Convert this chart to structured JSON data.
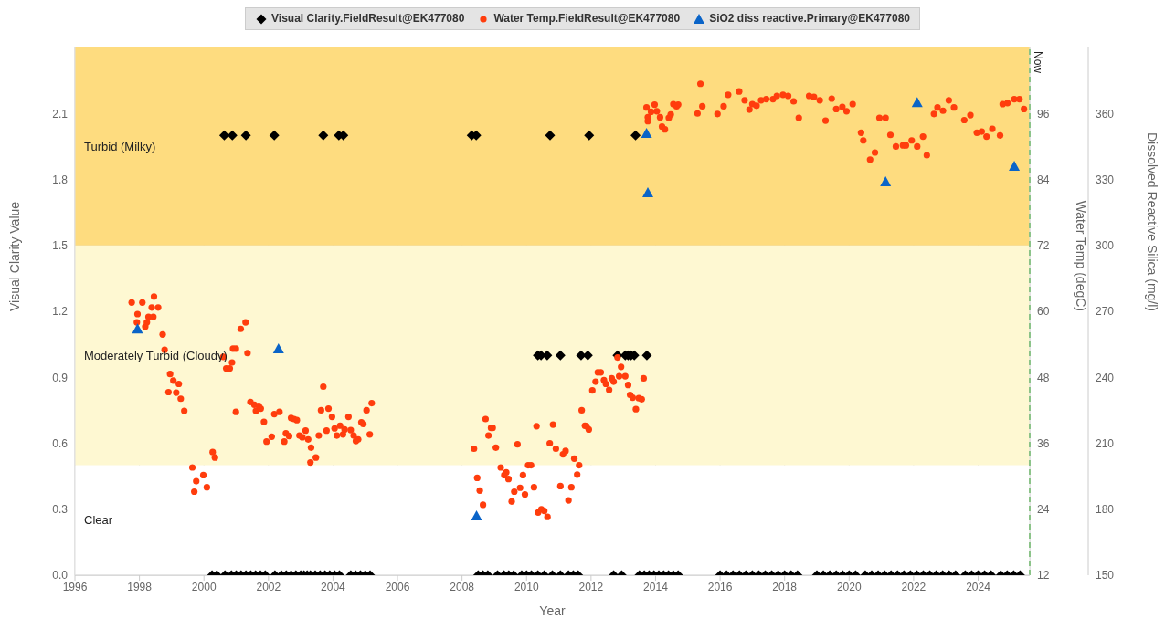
{
  "chart_data": {
    "type": "scatter",
    "xlabel": "Year",
    "ylabel": "Visual Clarity Value",
    "y2label": "Water Temp (degC)",
    "y3label": "Dissolved Reactive Silica (mg/l)",
    "xlim": [
      1996,
      2025.6
    ],
    "xticks": [
      1996,
      1998,
      2000,
      2002,
      2004,
      2006,
      2008,
      2010,
      2012,
      2014,
      2016,
      2018,
      2020,
      2022,
      2024
    ],
    "ylim": [
      0,
      2.4
    ],
    "yticks": [
      {
        "value": 0,
        "label": "0.0"
      },
      0.3,
      0.6,
      0.9,
      1.2,
      1.5,
      1.8,
      2.1
    ],
    "y2lim": [
      12,
      108
    ],
    "y2ticks": [
      12,
      24,
      36,
      48,
      60,
      72,
      84,
      96
    ],
    "y3lim": [
      150,
      390
    ],
    "y3ticks": [
      150,
      180,
      210,
      240,
      270,
      300,
      330,
      360
    ],
    "grid": true,
    "legend": "top",
    "bands": [
      {
        "axis": "y",
        "from": 0,
        "to": 0.5,
        "label": "Clear",
        "color": "#ffffff"
      },
      {
        "axis": "y",
        "from": 0.5,
        "to": 1.5,
        "label": "Moderately Turbid (Cloudy)",
        "color": "#fef8d2"
      },
      {
        "axis": "y",
        "from": 1.5,
        "to": 2.4,
        "label": "Turbid (Milky)",
        "color": "#fedc7f"
      }
    ],
    "ref_lines": [
      {
        "axis": "x",
        "value": 2025.6,
        "label": "Now",
        "color": "#3aaa35",
        "line_style": "dashed"
      }
    ],
    "series": [
      {
        "name": "Visual Clarity.FieldResult@EK477080",
        "color": "#000000",
        "marker": "diamond",
        "x": [
          2000.63,
          2000.88,
          2001.3,
          2002.18,
          2003.7,
          2004.18,
          2004.32,
          2008.3,
          2008.44,
          2010.73,
          2011.94,
          2013.38,
          2010.35,
          2010.45,
          2010.64,
          2011.05,
          2011.69,
          2011.9,
          2012.82,
          2013.06,
          2013.15,
          2013.24,
          2013.34,
          2013.73,
          2000.25,
          2000.4,
          2000.65,
          2000.85,
          2001.0,
          2001.15,
          2001.3,
          2001.45,
          2001.6,
          2001.75,
          2001.9,
          2002.2,
          2002.4,
          2002.55,
          2002.7,
          2002.85,
          2003.0,
          2003.1,
          2003.2,
          2003.3,
          2003.45,
          2003.6,
          2003.75,
          2003.9,
          2004.05,
          2004.2,
          2004.55,
          2004.7,
          2004.85,
          2005.0,
          2005.15,
          2008.5,
          2008.65,
          2008.8,
          2009.1,
          2009.3,
          2009.45,
          2009.6,
          2009.85,
          2010.0,
          2010.15,
          2010.35,
          2010.55,
          2010.8,
          2011.05,
          2011.3,
          2011.45,
          2011.6,
          2012.7,
          2012.95,
          2013.5,
          2013.65,
          2013.8,
          2013.95,
          2014.1,
          2014.25,
          2014.4,
          2014.55,
          2014.7,
          2016.0,
          2016.2,
          2016.4,
          2016.6,
          2016.8,
          2017.0,
          2017.2,
          2017.4,
          2017.6,
          2017.8,
          2018.0,
          2018.2,
          2018.4,
          2019.0,
          2019.2,
          2019.4,
          2019.6,
          2019.8,
          2020.0,
          2020.2,
          2020.5,
          2020.7,
          2020.9,
          2021.1,
          2021.3,
          2021.5,
          2021.7,
          2021.9,
          2022.1,
          2022.3,
          2022.5,
          2022.7,
          2022.9,
          2023.1,
          2023.3,
          2023.6,
          2023.8,
          2024.0,
          2024.2,
          2024.4,
          2024.7,
          2024.9,
          2025.1,
          2025.3
        ],
        "values": [
          2,
          2,
          2,
          2,
          2,
          2,
          2,
          2,
          2,
          2,
          2,
          2,
          1,
          1,
          1,
          1,
          1,
          1,
          1,
          1,
          1,
          1,
          1,
          1,
          0,
          0,
          0,
          0,
          0,
          0,
          0,
          0,
          0,
          0,
          0,
          0,
          0,
          0,
          0,
          0,
          0,
          0,
          0,
          0,
          0,
          0,
          0,
          0,
          0,
          0,
          0,
          0,
          0,
          0,
          0,
          0,
          0,
          0,
          0,
          0,
          0,
          0,
          0,
          0,
          0,
          0,
          0,
          0,
          0,
          0,
          0,
          0,
          0,
          0,
          0,
          0,
          0,
          0,
          0,
          0,
          0,
          0,
          0,
          0,
          0,
          0,
          0,
          0,
          0,
          0,
          0,
          0,
          0,
          0,
          0,
          0,
          0,
          0,
          0,
          0,
          0,
          0,
          0,
          0,
          0,
          0,
          0,
          0,
          0,
          0,
          0,
          0,
          0,
          0,
          0,
          0,
          0,
          0,
          0,
          0,
          0,
          0,
          0,
          0,
          0,
          0,
          0
        ]
      },
      {
        "name": "Water Temp.FieldResult@EK477080",
        "color": "#ff3d0d",
        "marker": "circle",
        "axis": "y2",
        "x": [
          1997.76,
          1997.92,
          1997.94,
          1998.09,
          1998.18,
          1998.23,
          1998.28,
          1998.38,
          1998.43,
          1998.45,
          1998.58,
          1998.72,
          1998.78,
          1998.9,
          1998.95,
          1999.05,
          1999.14,
          1999.22,
          1999.28,
          1999.39,
          1999.64,
          1999.7,
          1999.76,
          1999.98,
          2000.09,
          2000.27,
          2000.34,
          2000.6,
          2000.69,
          2000.8,
          2000.87,
          2000.9,
          2000.99,
          2000.99,
          2001.14,
          2001.29,
          2001.35,
          2001.44,
          2001.56,
          2001.61,
          2001.7,
          2001.76,
          2001.86,
          2001.94,
          2002.1,
          2002.18,
          2002.34,
          2002.49,
          2002.54,
          2002.64,
          2002.7,
          2002.79,
          2002.88,
          2002.96,
          2003.05,
          2003.15,
          2003.23,
          2003.3,
          2003.32,
          2003.47,
          2003.56,
          2003.63,
          2003.7,
          2003.8,
          2003.86,
          2003.97,
          2004.05,
          2004.12,
          2004.22,
          2004.31,
          2004.36,
          2004.48,
          2004.55,
          2004.64,
          2004.71,
          2004.78,
          2004.88,
          2004.94,
          2005.04,
          2005.14,
          2005.2,
          2008.37,
          2008.47,
          2008.55,
          2008.65,
          2008.73,
          2008.82,
          2008.9,
          2008.95,
          2009.05,
          2009.2,
          2009.31,
          2009.37,
          2009.44,
          2009.54,
          2009.62,
          2009.72,
          2009.8,
          2009.89,
          2009.95,
          2010.05,
          2010.14,
          2010.23,
          2010.31,
          2010.36,
          2010.46,
          2010.55,
          2010.65,
          2010.72,
          2010.82,
          2010.91,
          2011.05,
          2011.13,
          2011.21,
          2011.3,
          2011.39,
          2011.48,
          2011.57,
          2011.63,
          2011.71,
          2011.81,
          2011.86,
          2011.93,
          2012.04,
          2012.14,
          2012.21,
          2012.3,
          2012.4,
          2012.46,
          2012.56,
          2012.64,
          2012.7,
          2012.82,
          2012.87,
          2012.93,
          2013.06,
          2013.15,
          2013.21,
          2013.29,
          2013.39,
          2013.48,
          2013.57,
          2013.63,
          2013.72,
          2013.76,
          2013.76,
          2013.86,
          2013.97,
          2014.04,
          2014.14,
          2014.2,
          2014.29,
          2014.41,
          2014.47,
          2014.55,
          2014.65,
          2014.7,
          2015.3,
          2015.39,
          2015.45,
          2015.92,
          2016.11,
          2016.25,
          2016.59,
          2016.76,
          2016.91,
          2017.0,
          2017.13,
          2017.27,
          2017.43,
          2017.64,
          2017.76,
          2017.95,
          2018.11,
          2018.28,
          2018.44,
          2018.76,
          2018.91,
          2019.09,
          2019.27,
          2019.46,
          2019.6,
          2019.79,
          2019.92,
          2020.11,
          2020.37,
          2020.44,
          2020.65,
          2020.8,
          2020.94,
          2021.13,
          2021.28,
          2021.45,
          2021.67,
          2021.76,
          2021.94,
          2022.11,
          2022.29,
          2022.41,
          2022.63,
          2022.74,
          2022.91,
          2023.09,
          2023.25,
          2023.57,
          2023.76,
          2023.96,
          2024.11,
          2024.26,
          2024.44,
          2024.68,
          2024.76,
          2024.91,
          2025.12,
          2025.28,
          2025.42
        ],
        "values": [
          61.6,
          58,
          59.5,
          61.6,
          57.2,
          58,
          59,
          60.7,
          59,
          62.7,
          60.7,
          55.8,
          53,
          45.3,
          48.6,
          47.4,
          45.2,
          46.8,
          44.1,
          41.9,
          31.6,
          27.2,
          29.1,
          30.2,
          28,
          34.4,
          33.4,
          51.7,
          49.6,
          49.6,
          50.7,
          53.2,
          53.2,
          41.7,
          56.8,
          58,
          52.4,
          43.5,
          43,
          41.9,
          42.8,
          42.3,
          39.9,
          36.3,
          37.2,
          41.3,
          41.7,
          36.3,
          37.8,
          37.3,
          40.6,
          40.4,
          40.2,
          37.4,
          37.1,
          38.3,
          36.7,
          32.5,
          35.2,
          33.4,
          37.4,
          42,
          46.3,
          38.3,
          42.3,
          40.8,
          38.7,
          37.4,
          39.2,
          37.6,
          38.5,
          40.8,
          38.4,
          37.4,
          36.4,
          36.7,
          39.8,
          39.5,
          42,
          37.6,
          43.3,
          35,
          29.7,
          27.4,
          24.8,
          40.4,
          37.4,
          38.8,
          38.8,
          35.2,
          31.6,
          30.2,
          30.7,
          29.5,
          25.4,
          27.2,
          35.8,
          27.9,
          30.2,
          26.7,
          32,
          32,
          28,
          39.1,
          23.4,
          24,
          23.7,
          22.6,
          36,
          39.4,
          35,
          28.2,
          34,
          34.6,
          25.6,
          28,
          33.2,
          30.3,
          32,
          42,
          39.2,
          39.1,
          38.5,
          45.6,
          47.2,
          48.9,
          48.9,
          47.5,
          46.8,
          45.7,
          47.8,
          47.2,
          51.6,
          48.2,
          49.9,
          48.2,
          46.6,
          44.8,
          44.3,
          42.2,
          44.2,
          44,
          47.8,
          97.1,
          95.3,
          94.6,
          96.3,
          97.6,
          96.4,
          95.3,
          93.6,
          93.1,
          95.2,
          95.8,
          97.7,
          97.3,
          97.6,
          96,
          101.4,
          97.3,
          95.9,
          97.3,
          99.4,
          100,
          98.4,
          96.7,
          97.7,
          97.4,
          98.4,
          98.6,
          98.6,
          99.2,
          99.4,
          99.2,
          98.2,
          95.2,
          99.2,
          99,
          98.4,
          94.7,
          98.7,
          96.8,
          97.2,
          96.4,
          97.7,
          92.5,
          91.1,
          87.6,
          88.9,
          95.2,
          95.2,
          92.1,
          90,
          90.2,
          90.2,
          91.1,
          90,
          91.8,
          88.4,
          95.9,
          97.1,
          96.5,
          98.4,
          97.1,
          94.8,
          95.7,
          92.5,
          92.7,
          91.8,
          93.2,
          92,
          97.7,
          97.9,
          98.6,
          98.6,
          96.8
        ]
      },
      {
        "name": "SiO2 diss reactive.Primary@EK477080",
        "color": "#0a64c8",
        "marker": "triangle",
        "axis": "y3",
        "x": [
          1997.94,
          2002.31,
          2008.45,
          2013.72,
          2013.76,
          2021.13,
          2022.11,
          2025.12
        ],
        "values": [
          262,
          253,
          177,
          351,
          324,
          329,
          365,
          336
        ]
      }
    ]
  }
}
